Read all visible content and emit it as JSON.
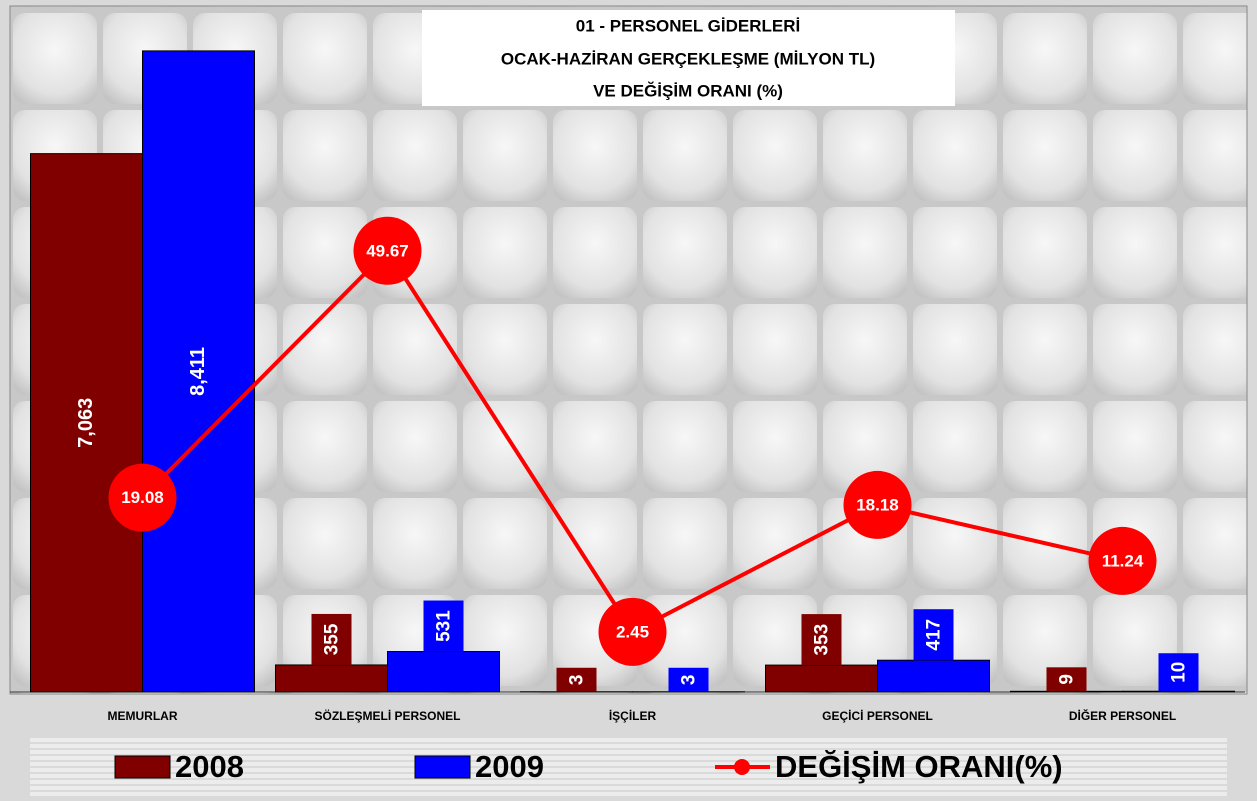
{
  "chart_data": {
    "type": "bar",
    "title": [
      "01 - PERSONEL GİDERLERİ",
      "OCAK-HAZİRAN GERÇEKLEŞME (MİLYON TL)",
      "VE DEĞİŞİM ORANI (%)"
    ],
    "categories": [
      "MEMURLAR",
      "SÖZLEŞMELİ PERSONEL",
      "İŞÇİLER",
      "GEÇİCİ PERSONEL",
      "DİĞER PERSONEL"
    ],
    "series": [
      {
        "name": "2008",
        "color": "#800000",
        "type": "bar",
        "values": [
          7063,
          355,
          3,
          353,
          9
        ],
        "value_labels": [
          "7,063",
          "355",
          "3",
          "353",
          "9"
        ]
      },
      {
        "name": "2009",
        "color": "#0000ff",
        "type": "bar",
        "values": [
          8411,
          531,
          3,
          417,
          10
        ],
        "value_labels": [
          "8,411",
          "531",
          "3",
          "417",
          "10"
        ]
      },
      {
        "name": "DEĞİŞİM ORANI(%)",
        "color": "#ff0000",
        "type": "line",
        "axis": "y2",
        "values": [
          19.08,
          49.67,
          2.45,
          18.18,
          11.24
        ]
      }
    ],
    "ylim": [
      0,
      9000
    ],
    "y2lim": [
      -5,
      80
    ],
    "legend": "bottom"
  }
}
